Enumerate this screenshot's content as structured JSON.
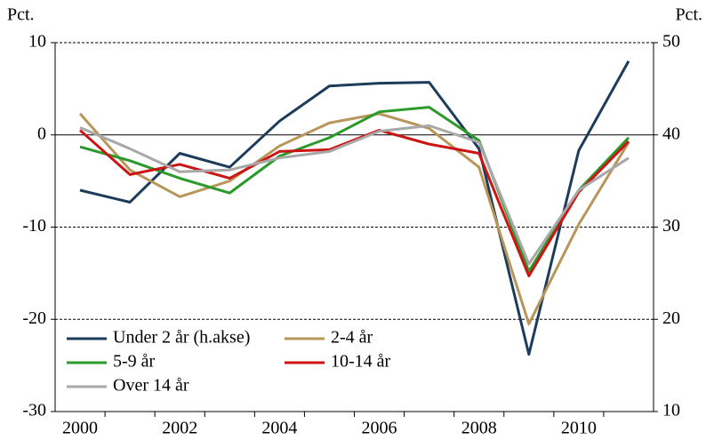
{
  "chart_data": {
    "type": "line",
    "y_label": "Pct.",
    "y2_label": "Pct.",
    "categories": [
      "2000",
      null,
      "2002",
      null,
      "2004",
      null,
      "2006",
      null,
      "2008",
      null,
      "2010",
      null
    ],
    "ylim": [
      -30,
      10
    ],
    "yticks": [
      -30,
      -20,
      -10,
      0,
      10
    ],
    "y2lim": [
      10,
      50
    ],
    "y2ticks": [
      10,
      20,
      30,
      40,
      50
    ],
    "grid": true,
    "legend": "lower left",
    "series": [
      {
        "name": "Under 2 år (h.akse)",
        "color": "#1d3c5c",
        "axis": "y2",
        "values": [
          34,
          32.7,
          38,
          36.5,
          41.5,
          45.3,
          45.6,
          45.7,
          38.5,
          16.2,
          38.3,
          48
        ]
      },
      {
        "name": "2-4 år",
        "color": "#b89659",
        "values": [
          2.3,
          -3.8,
          -6.7,
          -5,
          -1.2,
          1.3,
          2.3,
          0.7,
          -3.5,
          -20.5,
          -9.7,
          -0.8
        ]
      },
      {
        "name": "5-9 år",
        "color": "#2a9a2a",
        "values": [
          -1.3,
          -2.8,
          -4.7,
          -6.3,
          -2.3,
          -0.3,
          2.5,
          3,
          -0.6,
          -14.8,
          -6,
          -0.3
        ]
      },
      {
        "name": "10-14 år",
        "color": "#cc1414",
        "values": [
          0.5,
          -4.3,
          -3.2,
          -4.7,
          -1.8,
          -1.6,
          0.5,
          -1,
          -2,
          -15.3,
          -6.2,
          -0.7
        ]
      },
      {
        "name": "Over 14 år",
        "color": "#a8a8a8",
        "values": [
          0.8,
          -1.5,
          -4,
          -3.8,
          -2.5,
          -1.8,
          0.4,
          1,
          -0.8,
          -14,
          -6,
          -2.5
        ]
      }
    ]
  }
}
